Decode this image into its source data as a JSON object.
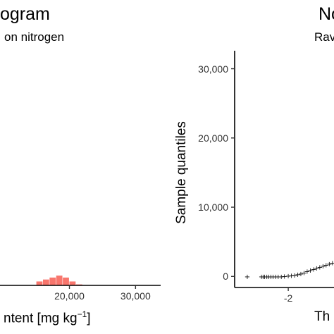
{
  "chart_data": [
    {
      "type": "bar",
      "title": "ogram",
      "subtitle": "on nitrogen",
      "xlabel": "ntent [mg kg",
      "xlabel_sup": "−1",
      "xlabel_close": "]",
      "xlim": [
        9500,
        33800
      ],
      "x_ticks": [
        {
          "value": 20000,
          "label": "20,000"
        },
        {
          "value": 30000,
          "label": "30,000"
        }
      ],
      "bar_color": "#f8766d",
      "bins": [
        {
          "x0": 15000,
          "x1": 16000,
          "count": 2
        },
        {
          "x0": 16000,
          "x1": 17000,
          "count": 3
        },
        {
          "x0": 17000,
          "x1": 18000,
          "count": 4
        },
        {
          "x0": 18000,
          "x1": 19000,
          "count": 5
        },
        {
          "x0": 19000,
          "x1": 20000,
          "count": 4
        },
        {
          "x0": 20000,
          "x1": 21000,
          "count": 2
        },
        {
          "x0": 21000,
          "x1": 22000,
          "count": 0.5
        }
      ],
      "ylim": [
        0,
        120
      ],
      "grid": false
    },
    {
      "type": "scatter",
      "title": "No",
      "subtitle": "Rav",
      "xlabel": "Th",
      "ylabel": "Sample quantiles",
      "xlim": [
        -3.7,
        -0.55
      ],
      "ylim": [
        -1600,
        32600
      ],
      "x_ticks": [
        {
          "value": -2,
          "label": "-2"
        }
      ],
      "y_ticks": [
        {
          "value": 0,
          "label": "0"
        },
        {
          "value": 10000,
          "label": "10,000"
        },
        {
          "value": 20000,
          "label": "20,000"
        },
        {
          "value": 30000,
          "label": "30,000"
        }
      ],
      "marker": "+",
      "points": [
        {
          "x": -3.3,
          "y": 0
        },
        {
          "x": -2.85,
          "y": 0
        },
        {
          "x": -2.8,
          "y": 0
        },
        {
          "x": -2.75,
          "y": 0
        },
        {
          "x": -2.68,
          "y": 0
        },
        {
          "x": -2.62,
          "y": 0
        },
        {
          "x": -2.55,
          "y": 0
        },
        {
          "x": -2.48,
          "y": 0
        },
        {
          "x": -2.4,
          "y": 0
        },
        {
          "x": -2.32,
          "y": 0
        },
        {
          "x": -2.22,
          "y": 0
        },
        {
          "x": -2.12,
          "y": 50
        },
        {
          "x": -2.0,
          "y": 100
        },
        {
          "x": -1.9,
          "y": 150
        },
        {
          "x": -1.8,
          "y": 200
        },
        {
          "x": -1.7,
          "y": 300
        },
        {
          "x": -1.6,
          "y": 400
        },
        {
          "x": -1.5,
          "y": 550
        },
        {
          "x": -1.4,
          "y": 750
        },
        {
          "x": -1.3,
          "y": 900
        },
        {
          "x": -1.2,
          "y": 1050
        },
        {
          "x": -1.1,
          "y": 1200
        },
        {
          "x": -1.0,
          "y": 1350
        },
        {
          "x": -0.9,
          "y": 1500
        },
        {
          "x": -0.8,
          "y": 1650
        },
        {
          "x": -0.7,
          "y": 1800
        },
        {
          "x": -0.6,
          "y": 1950
        }
      ],
      "grid": false
    }
  ]
}
